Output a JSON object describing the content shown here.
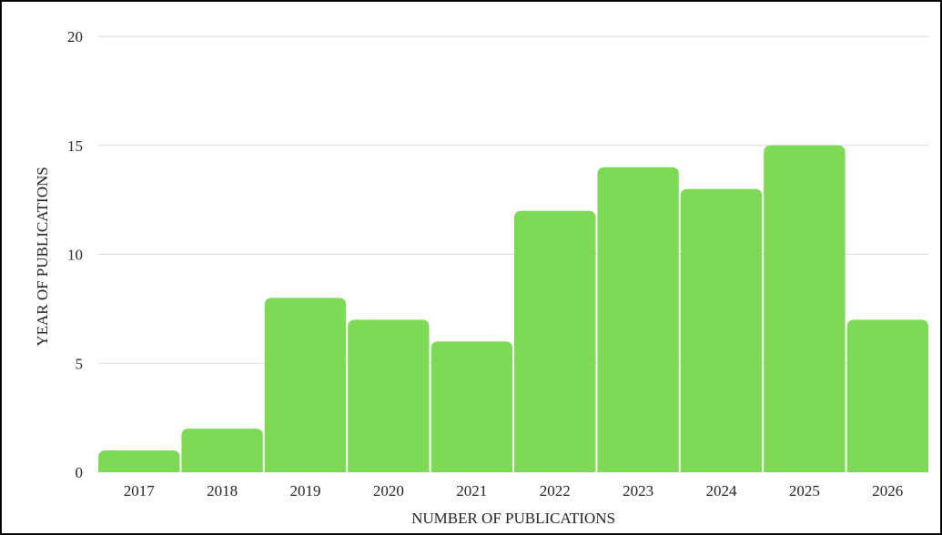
{
  "chart_data": {
    "type": "bar",
    "categories": [
      "2017",
      "2018",
      "2019",
      "2020",
      "2021",
      "2022",
      "2023",
      "2024",
      "2025",
      "2026"
    ],
    "values": [
      1,
      2,
      8,
      7,
      6,
      12,
      14,
      13,
      15,
      7
    ],
    "title": "",
    "xlabel": "NUMBER OF PUBLICATIONS",
    "ylabel": "YEAR OF PUBLICATIONS",
    "ylim": [
      0,
      20
    ],
    "yticks": [
      0,
      5,
      10,
      15,
      20
    ],
    "grid": true,
    "legend": "none",
    "bar_color": "#7ed957"
  }
}
